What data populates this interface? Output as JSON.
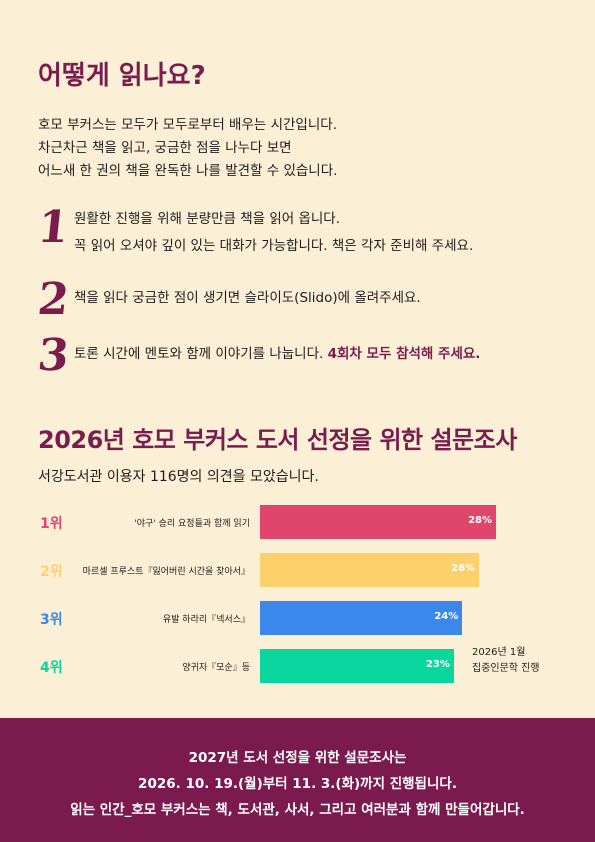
{
  "how_to": {
    "title": "어떻게 읽나요?",
    "intro": [
      "호모 부커스는 모두가 모두로부터 배우는 시간입니다.",
      "차근차근 책을 읽고, 궁금한 점을 나누다 보면",
      "어느새 한 권의 책을 완독한 나를 발견할 수 있습니다."
    ],
    "steps": [
      {
        "number": "1",
        "line1": "원활한 진행을 위해 분량만큼 책을 읽어 옵니다.",
        "line2": "꼭 읽어 오셔야 깊이 있는 대화가 가능합니다. 책은 각자 준비해 주세요."
      },
      {
        "number": "2",
        "line1": "책을 읽다 궁금한 점이 생기면 슬라이도(Slido)에 올려주세요."
      },
      {
        "number": "3",
        "line1": "토론 시간에 멘토와 함께 이야기를 나눕니다.",
        "highlight": "4회차 모두 참석해 주세요."
      }
    ]
  },
  "survey": {
    "title": "2026년 호모 부커스 도서 선정을 위한 설문조사",
    "subtitle": "서강도서관 이용자 116명의 의견을 모았습니다.",
    "note_line1": "2026년 1월",
    "note_line2": "집중인문학 진행"
  },
  "chart_data": {
    "type": "bar",
    "orientation": "horizontal",
    "categories": [
      "'야구' 승리 요정들과 함께 읽기",
      "마르셀 프루스트『잃어버린 시간을 찾아서』",
      "유발 하라리『넥서스』",
      "양귀자『모순』등"
    ],
    "ranks": [
      "1위",
      "2위",
      "3위",
      "4위"
    ],
    "values": [
      28,
      26,
      24,
      23
    ],
    "value_labels": [
      "28%",
      "26%",
      "24%",
      "23%"
    ],
    "colors": [
      "#e0466b",
      "#fcd06a",
      "#3b88ec",
      "#0ad6a0"
    ]
  },
  "footer": {
    "line1": "2027년 도서 선정을 위한 설문조사는",
    "line2": "2026. 10. 19.(월)부터 11. 3.(화)까지 진행됩니다.",
    "line3": "읽는 인간_호모 부커스는 책, 도서관, 사서, 그리고 여러분과 함께 만들어갑니다."
  },
  "colors": {
    "background": "#fbefd6",
    "accent": "#7a1c4d",
    "footer_bg": "#7b1a4f"
  }
}
